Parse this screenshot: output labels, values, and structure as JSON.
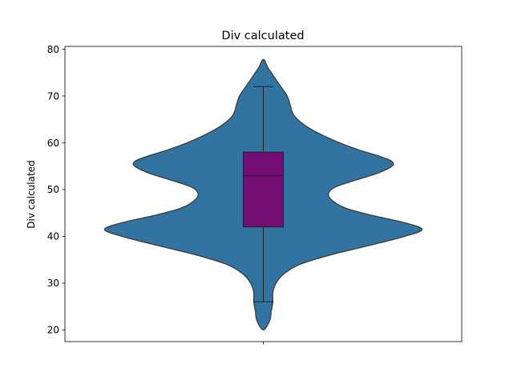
{
  "chart_data": {
    "type": "violin",
    "title": "Div calculated",
    "xlabel": "",
    "ylabel": "Div calculated",
    "ylim": [
      17.5,
      80.6
    ],
    "yticks": [
      20,
      30,
      40,
      50,
      60,
      70,
      80
    ],
    "grid": false,
    "colors": {
      "violin_fill": "#3274a1",
      "violin_edge": "#3f3f3f",
      "box_fill": "#730f73",
      "box_edge": "#222222"
    },
    "violin": {
      "y_min": 20.0,
      "y_max": 77.8,
      "density": [
        [
          20.0,
          0.0
        ],
        [
          22.0,
          0.04
        ],
        [
          24.0,
          0.05
        ],
        [
          26.0,
          0.06
        ],
        [
          28.0,
          0.06
        ],
        [
          30.0,
          0.08
        ],
        [
          32.0,
          0.13
        ],
        [
          34.0,
          0.23
        ],
        [
          36.0,
          0.42
        ],
        [
          38.0,
          0.66
        ],
        [
          40.0,
          0.89
        ],
        [
          41.5,
          1.0
        ],
        [
          43.0,
          0.88
        ],
        [
          44.5,
          0.68
        ],
        [
          46.0,
          0.52
        ],
        [
          47.5,
          0.44
        ],
        [
          49.0,
          0.41
        ],
        [
          50.5,
          0.45
        ],
        [
          52.0,
          0.58
        ],
        [
          53.5,
          0.72
        ],
        [
          55.0,
          0.81
        ],
        [
          56.0,
          0.81
        ],
        [
          57.0,
          0.74
        ],
        [
          58.5,
          0.6
        ],
        [
          60.0,
          0.48
        ],
        [
          62.0,
          0.35
        ],
        [
          64.0,
          0.25
        ],
        [
          66.0,
          0.19
        ],
        [
          68.0,
          0.17
        ],
        [
          70.0,
          0.15
        ],
        [
          72.0,
          0.11
        ],
        [
          74.0,
          0.07
        ],
        [
          76.0,
          0.03
        ],
        [
          77.8,
          0.0
        ]
      ]
    },
    "box": {
      "whisker_low": 26,
      "q1": 42,
      "median": 53,
      "q3": 58,
      "whisker_high": 72
    }
  }
}
